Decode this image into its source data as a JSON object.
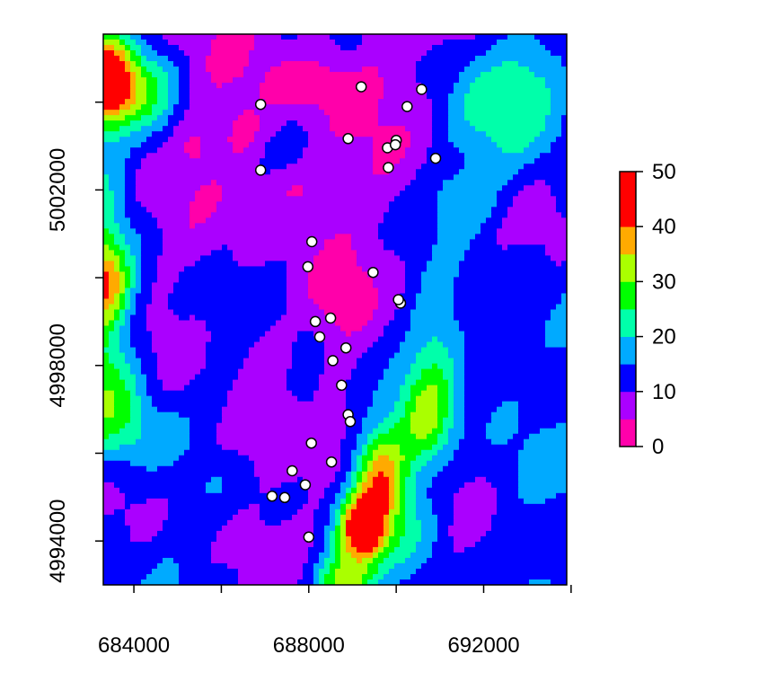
{
  "chart_data": {
    "type": "heatmap",
    "title": "",
    "xlabel": "",
    "ylabel": "",
    "xlim": [
      683300,
      693900
    ],
    "ylim": [
      4993000,
      5005550
    ],
    "x_ticks": [
      684000,
      686000,
      688000,
      690000,
      692000,
      694000
    ],
    "x_tick_labels": [
      "684000",
      "",
      "688000",
      "",
      "692000",
      ""
    ],
    "y_ticks": [
      4994000,
      4996000,
      4998000,
      5000000,
      5002000,
      5004000
    ],
    "y_tick_labels": [
      "4994000",
      "",
      "4998000",
      "",
      "5002000",
      ""
    ],
    "legend": {
      "position": "right",
      "breaks": [
        0,
        5,
        10,
        15,
        20,
        25,
        30,
        35,
        40,
        45,
        50
      ],
      "labels": [
        "0",
        "10",
        "20",
        "30",
        "40",
        "50"
      ],
      "label_values": [
        0,
        10,
        20,
        30,
        40,
        50
      ],
      "colors": [
        "#FF00AA",
        "#AA00FF",
        "#0000FF",
        "#00AAFF",
        "#00FFAA",
        "#00FF00",
        "#AAFF00",
        "#FFAA00",
        "#FF0000",
        "#FF0000"
      ]
    },
    "points": [
      {
        "x": 689200,
        "y": 5004350
      },
      {
        "x": 686900,
        "y": 5003950
      },
      {
        "x": 690580,
        "y": 5004290
      },
      {
        "x": 690250,
        "y": 5003900
      },
      {
        "x": 688900,
        "y": 5003170
      },
      {
        "x": 689800,
        "y": 5002960
      },
      {
        "x": 690000,
        "y": 5003130
      },
      {
        "x": 689980,
        "y": 5003030
      },
      {
        "x": 690900,
        "y": 5002720
      },
      {
        "x": 689820,
        "y": 5002510
      },
      {
        "x": 686900,
        "y": 5002450
      },
      {
        "x": 688070,
        "y": 5000820
      },
      {
        "x": 687980,
        "y": 5000250
      },
      {
        "x": 689470,
        "y": 5000120
      },
      {
        "x": 690100,
        "y": 4999420
      },
      {
        "x": 690050,
        "y": 4999500
      },
      {
        "x": 688500,
        "y": 4999080
      },
      {
        "x": 688150,
        "y": 4999000
      },
      {
        "x": 688250,
        "y": 4998650
      },
      {
        "x": 688850,
        "y": 4998400
      },
      {
        "x": 688550,
        "y": 4998110
      },
      {
        "x": 688750,
        "y": 4997550
      },
      {
        "x": 688900,
        "y": 4996880
      },
      {
        "x": 688950,
        "y": 4996720
      },
      {
        "x": 688060,
        "y": 4996230
      },
      {
        "x": 688520,
        "y": 4995800
      },
      {
        "x": 687620,
        "y": 4995600
      },
      {
        "x": 687920,
        "y": 4995280
      },
      {
        "x": 687160,
        "y": 4995020
      },
      {
        "x": 687450,
        "y": 4994990
      },
      {
        "x": 688000,
        "y": 4994090
      }
    ]
  }
}
